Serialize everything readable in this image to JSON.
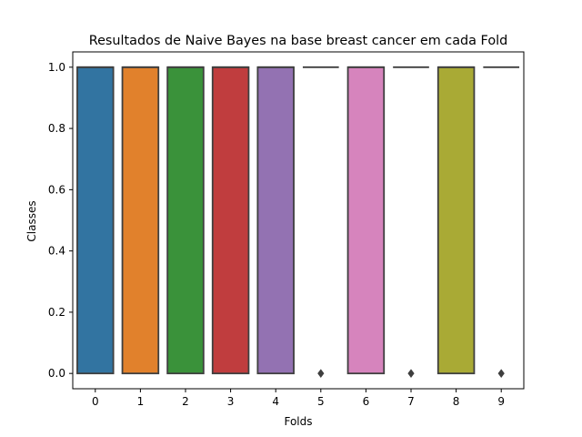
{
  "chart_data": {
    "type": "box",
    "title": "Resultados de Naive Bayes na base breast cancer em cada Fold",
    "xlabel": "Folds",
    "ylabel": "Classes",
    "ylim": [
      -0.05,
      1.05
    ],
    "yticks": [
      "0.0",
      "0.2",
      "0.4",
      "0.6",
      "0.8",
      "1.0"
    ],
    "ytick_values": [
      0,
      0.2,
      0.4,
      0.6,
      0.8,
      1.0
    ],
    "categories": [
      "0",
      "1",
      "2",
      "3",
      "4",
      "5",
      "6",
      "7",
      "8",
      "9"
    ],
    "grid": false,
    "boxes": [
      {
        "fold": "0",
        "q1": 0,
        "median": 1,
        "q3": 1,
        "whisker_low": 0,
        "whisker_high": 1,
        "outliers": [],
        "color": "#3274a1"
      },
      {
        "fold": "1",
        "q1": 0,
        "median": 1,
        "q3": 1,
        "whisker_low": 0,
        "whisker_high": 1,
        "outliers": [],
        "color": "#e1812c"
      },
      {
        "fold": "2",
        "q1": 0,
        "median": 1,
        "q3": 1,
        "whisker_low": 0,
        "whisker_high": 1,
        "outliers": [],
        "color": "#3a923a"
      },
      {
        "fold": "3",
        "q1": 0,
        "median": 1,
        "q3": 1,
        "whisker_low": 0,
        "whisker_high": 1,
        "outliers": [],
        "color": "#c03d3e"
      },
      {
        "fold": "4",
        "q1": 0,
        "median": 1,
        "q3": 1,
        "whisker_low": 0,
        "whisker_high": 1,
        "outliers": [],
        "color": "#9372b2"
      },
      {
        "fold": "5",
        "q1": 1,
        "median": 1,
        "q3": 1,
        "whisker_low": 1,
        "whisker_high": 1,
        "outliers": [
          0
        ],
        "color": "#845b53"
      },
      {
        "fold": "6",
        "q1": 0,
        "median": 1,
        "q3": 1,
        "whisker_low": 0,
        "whisker_high": 1,
        "outliers": [],
        "color": "#d684bd"
      },
      {
        "fold": "7",
        "q1": 1,
        "median": 1,
        "q3": 1,
        "whisker_low": 1,
        "whisker_high": 1,
        "outliers": [
          0
        ],
        "color": "#7f7f7f"
      },
      {
        "fold": "8",
        "q1": 0,
        "median": 1,
        "q3": 1,
        "whisker_low": 0,
        "whisker_high": 1,
        "outliers": [],
        "color": "#a9aa35"
      },
      {
        "fold": "9",
        "q1": 1,
        "median": 1,
        "q3": 1,
        "whisker_low": 1,
        "whisker_high": 1,
        "outliers": [
          0
        ],
        "color": "#2ebece"
      }
    ],
    "edge_color": "#3f3f3f"
  }
}
